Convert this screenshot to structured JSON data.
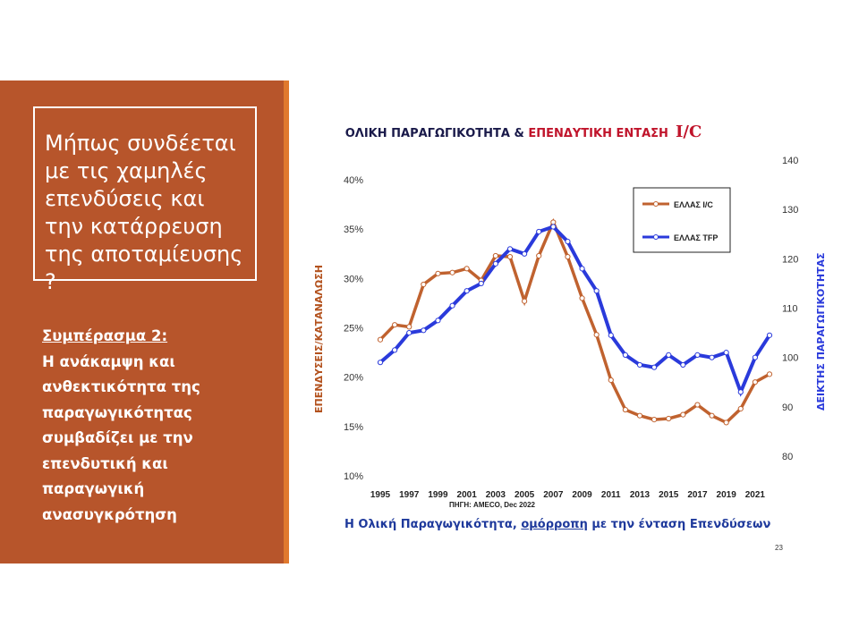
{
  "slide": {
    "question": "Μήπως συνδέεται με τις χαμηλές επενδύσεις και την κατάρρευση της αποταμίευσης ?",
    "conclusion_title": "Συμπέρασμα 2:",
    "conclusion_body": "Η ανάκαμψη και ανθεκτικότητα της παραγωγικότητας συμβαδίζει με την επενδυτική και παραγωγική ανασυγκρότηση",
    "caption_part1": "Η Ολική Παραγωγικότητα, ",
    "caption_part2": "ομόρροπη",
    "caption_part3": " με την ένταση Επενδύσεων",
    "page_number": "23"
  },
  "colors": {
    "panel": "#b7552b",
    "accent": "#e0792e",
    "series_ic": "#c0622f",
    "series_tfp": "#2a3adb"
  },
  "chart_data": {
    "type": "line",
    "title_part1": "ΟΛΙΚΗ ΠΑΡΑΓΩΓΙΚΟΤΗΤΑ & ",
    "title_part2": "ΕΠΕΝΔΥΤΙΚΗ ΕΝΤΑΣΗ",
    "title_part3": "I/C",
    "ylabel_left": "ΕΠΕΝΔΥΣΕΙΣ/ΚΑΤΑΝΑΛΩΣΗ",
    "ylabel_right": "ΔΕΙΚΤΗΣ ΠΑΡΑΓΩΓΙΚΟΤΗΤΑΣ",
    "source": "ΠΗΓΗ: AMECO, Dec 2022",
    "ylim_left": [
      0.1,
      0.4
    ],
    "yticks_left": [
      "10%",
      "15%",
      "20%",
      "25%",
      "30%",
      "35%",
      "40%"
    ],
    "ylim_right": [
      80,
      140
    ],
    "yticks_right": [
      "80",
      "90",
      "100",
      "110",
      "120",
      "130",
      "140"
    ],
    "x": [
      1995,
      1996,
      1997,
      1998,
      1999,
      2000,
      2001,
      2002,
      2003,
      2004,
      2005,
      2006,
      2007,
      2008,
      2009,
      2010,
      2011,
      2012,
      2013,
      2014,
      2015,
      2016,
      2017,
      2018,
      2019,
      2020,
      2021,
      2022
    ],
    "xticks": [
      "1995",
      "1997",
      "1999",
      "2001",
      "2003",
      "2005",
      "2007",
      "2009",
      "2011",
      "2013",
      "2015",
      "2017",
      "2019",
      "2021"
    ],
    "legend_position": "top-right",
    "series": [
      {
        "name": "ΕΛΛΑΣ I/C",
        "axis": "left",
        "values": [
          0.238,
          0.253,
          0.251,
          0.294,
          0.305,
          0.306,
          0.31,
          0.298,
          0.323,
          0.322,
          0.277,
          0.323,
          0.357,
          0.322,
          0.28,
          0.243,
          0.197,
          0.167,
          0.161,
          0.157,
          0.158,
          0.162,
          0.172,
          0.161,
          0.154,
          0.168,
          0.195,
          0.203
        ]
      },
      {
        "name": "ΕΛΛΑΣ TFP",
        "axis": "right",
        "values": [
          99.0,
          101.5,
          105.0,
          105.5,
          107.5,
          110.5,
          113.5,
          115.0,
          119.0,
          122.0,
          121.0,
          125.5,
          126.5,
          123.5,
          118.0,
          113.5,
          104.5,
          100.5,
          98.5,
          98.0,
          100.5,
          98.5,
          100.5,
          100.0,
          101.0,
          93.0,
          100.0,
          104.5
        ]
      }
    ]
  }
}
